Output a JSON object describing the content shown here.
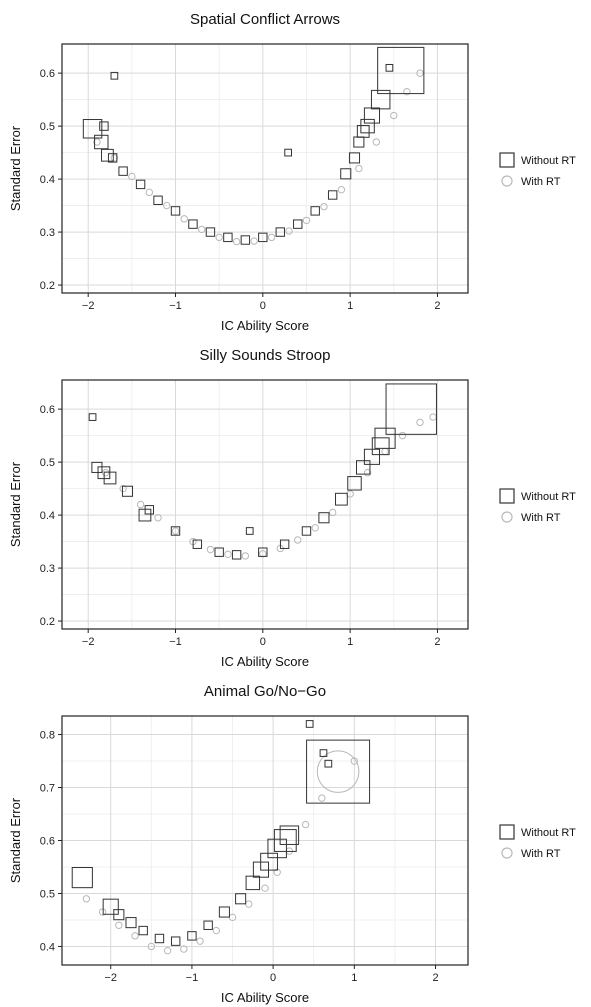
{
  "chart_data": [
    {
      "type": "scatter",
      "title": "Spatial Conflict Arrows",
      "xlabel": "IC Ability Score",
      "ylabel": "Standard Error",
      "xlim": [
        -2.3,
        2.35
      ],
      "ylim": [
        0.185,
        0.655
      ],
      "xticks": [
        -2,
        -1,
        0,
        1,
        2
      ],
      "yticks": [
        0.2,
        0.3,
        0.4,
        0.5,
        0.6
      ],
      "grid": true,
      "legend": "right",
      "series": [
        {
          "name": "Without RT",
          "marker": "square",
          "color": "#333333",
          "points": [
            [
              -1.95,
              0.495
            ],
            [
              -1.85,
              0.47
            ],
            [
              -1.82,
              0.5
            ],
            [
              -1.78,
              0.445
            ],
            [
              -1.72,
              0.44
            ],
            [
              -1.7,
              0.595
            ],
            [
              -1.6,
              0.415
            ],
            [
              -1.4,
              0.39
            ],
            [
              -1.2,
              0.36
            ],
            [
              -1.0,
              0.34
            ],
            [
              -0.8,
              0.315
            ],
            [
              -0.6,
              0.3
            ],
            [
              -0.4,
              0.29
            ],
            [
              -0.2,
              0.285
            ],
            [
              0.0,
              0.29
            ],
            [
              0.2,
              0.3
            ],
            [
              0.29,
              0.45
            ],
            [
              0.4,
              0.315
            ],
            [
              0.6,
              0.34
            ],
            [
              0.8,
              0.37
            ],
            [
              0.95,
              0.41
            ],
            [
              1.05,
              0.44
            ],
            [
              1.1,
              0.47
            ],
            [
              1.15,
              0.49
            ],
            [
              1.2,
              0.5
            ],
            [
              1.25,
              0.52
            ],
            [
              1.35,
              0.55
            ],
            [
              1.45,
              0.61
            ],
            [
              1.58,
              0.605
            ]
          ],
          "sizes": [
            2.2,
            1.6,
            1.0,
            1.4,
            1.0,
            0.8,
            1.0,
            1.0,
            1.0,
            1.0,
            1.0,
            1.0,
            1.0,
            1.0,
            1.0,
            1.0,
            0.8,
            1.0,
            1.0,
            1.0,
            1.2,
            1.2,
            1.2,
            1.4,
            1.6,
            1.8,
            2.2,
            0.8,
            5.5
          ]
        },
        {
          "name": "With RT",
          "marker": "circle",
          "color": "#b8b8b8",
          "points": [
            [
              -1.9,
              0.47
            ],
            [
              -1.7,
              0.44
            ],
            [
              -1.5,
              0.405
            ],
            [
              -1.3,
              0.375
            ],
            [
              -1.1,
              0.35
            ],
            [
              -0.9,
              0.325
            ],
            [
              -0.7,
              0.305
            ],
            [
              -0.5,
              0.29
            ],
            [
              -0.3,
              0.282
            ],
            [
              -0.1,
              0.283
            ],
            [
              0.1,
              0.29
            ],
            [
              0.3,
              0.302
            ],
            [
              0.5,
              0.322
            ],
            [
              0.7,
              0.348
            ],
            [
              0.9,
              0.38
            ],
            [
              1.1,
              0.42
            ],
            [
              1.3,
              0.47
            ],
            [
              1.5,
              0.52
            ],
            [
              1.65,
              0.565
            ],
            [
              1.8,
              0.6
            ]
          ]
        }
      ]
    },
    {
      "type": "scatter",
      "title": "Silly Sounds Stroop",
      "xlabel": "IC Ability Score",
      "ylabel": "Standard Error",
      "xlim": [
        -2.3,
        2.35
      ],
      "ylim": [
        0.185,
        0.655
      ],
      "xticks": [
        -2,
        -1,
        0,
        1,
        2
      ],
      "yticks": [
        0.2,
        0.3,
        0.4,
        0.5,
        0.6
      ],
      "grid": true,
      "legend": "right",
      "series": [
        {
          "name": "Without RT",
          "marker": "square",
          "color": "#333333",
          "points": [
            [
              -1.95,
              0.585
            ],
            [
              -1.9,
              0.49
            ],
            [
              -1.82,
              0.48
            ],
            [
              -1.75,
              0.47
            ],
            [
              -1.55,
              0.445
            ],
            [
              -1.3,
              0.41
            ],
            [
              -1.35,
              0.4
            ],
            [
              -1.0,
              0.37
            ],
            [
              -0.75,
              0.345
            ],
            [
              -0.5,
              0.33
            ],
            [
              -0.3,
              0.325
            ],
            [
              -0.15,
              0.37
            ],
            [
              0.0,
              0.33
            ],
            [
              0.25,
              0.345
            ],
            [
              0.5,
              0.37
            ],
            [
              0.7,
              0.395
            ],
            [
              0.9,
              0.43
            ],
            [
              1.05,
              0.46
            ],
            [
              1.15,
              0.49
            ],
            [
              1.25,
              0.51
            ],
            [
              1.35,
              0.53
            ],
            [
              1.4,
              0.545
            ],
            [
              1.7,
              0.6
            ]
          ],
          "sizes": [
            0.8,
            1.2,
            1.4,
            1.4,
            1.2,
            1.0,
            1.4,
            1.0,
            1.0,
            1.0,
            1.0,
            0.8,
            1.0,
            1.0,
            1.0,
            1.2,
            1.4,
            1.6,
            1.6,
            1.8,
            2.0,
            2.4,
            6.0
          ]
        },
        {
          "name": "With RT",
          "marker": "circle",
          "color": "#b8b8b8",
          "points": [
            [
              -1.8,
              0.48
            ],
            [
              -1.6,
              0.45
            ],
            [
              -1.4,
              0.42
            ],
            [
              -1.2,
              0.395
            ],
            [
              -1.0,
              0.37
            ],
            [
              -0.8,
              0.35
            ],
            [
              -0.6,
              0.335
            ],
            [
              -0.4,
              0.326
            ],
            [
              -0.2,
              0.323
            ],
            [
              0.0,
              0.327
            ],
            [
              0.2,
              0.337
            ],
            [
              0.4,
              0.353
            ],
            [
              0.6,
              0.376
            ],
            [
              0.8,
              0.405
            ],
            [
              1.0,
              0.44
            ],
            [
              1.2,
              0.48
            ],
            [
              1.4,
              0.52
            ],
            [
              1.6,
              0.55
            ],
            [
              1.8,
              0.575
            ],
            [
              1.95,
              0.585
            ]
          ]
        }
      ]
    },
    {
      "type": "scatter",
      "title": "Animal Go/No−Go",
      "xlabel": "IC Ability Score",
      "ylabel": "Standard Error",
      "xlim": [
        -2.6,
        2.4
      ],
      "ylim": [
        0.365,
        0.835
      ],
      "xticks": [
        -2,
        -1,
        0,
        1,
        2
      ],
      "yticks": [
        0.4,
        0.5,
        0.6,
        0.7,
        0.8
      ],
      "grid": true,
      "legend": "right",
      "series": [
        {
          "name": "Without RT",
          "marker": "square",
          "color": "#333333",
          "points": [
            [
              -2.35,
              0.53
            ],
            [
              -2.0,
              0.475
            ],
            [
              -1.9,
              0.46
            ],
            [
              -1.75,
              0.445
            ],
            [
              -1.6,
              0.43
            ],
            [
              -1.4,
              0.415
            ],
            [
              -1.2,
              0.41
            ],
            [
              -1.0,
              0.42
            ],
            [
              -0.8,
              0.44
            ],
            [
              -0.6,
              0.465
            ],
            [
              -0.4,
              0.49
            ],
            [
              -0.25,
              0.52
            ],
            [
              -0.15,
              0.545
            ],
            [
              -0.05,
              0.56
            ],
            [
              0.05,
              0.585
            ],
            [
              0.15,
              0.6
            ],
            [
              0.2,
              0.61
            ],
            [
              0.45,
              0.82
            ],
            [
              0.62,
              0.765
            ],
            [
              0.68,
              0.745
            ],
            [
              0.8,
              0.73
            ]
          ],
          "sizes": [
            2.4,
            1.8,
            1.2,
            1.2,
            1.0,
            1.0,
            1.0,
            1.0,
            1.0,
            1.2,
            1.2,
            1.6,
            1.8,
            2.0,
            2.2,
            2.6,
            2.2,
            0.8,
            0.8,
            0.8,
            7.5
          ]
        },
        {
          "name": "With RT",
          "marker": "circle",
          "color": "#b8b8b8",
          "points": [
            [
              -2.3,
              0.49
            ],
            [
              -2.1,
              0.465
            ],
            [
              -1.9,
              0.44
            ],
            [
              -1.7,
              0.42
            ],
            [
              -1.5,
              0.4
            ],
            [
              -1.3,
              0.392
            ],
            [
              -1.1,
              0.395
            ],
            [
              -0.9,
              0.41
            ],
            [
              -0.7,
              0.43
            ],
            [
              -0.5,
              0.455
            ],
            [
              -0.3,
              0.48
            ],
            [
              -0.1,
              0.51
            ],
            [
              0.05,
              0.54
            ],
            [
              0.2,
              0.58
            ],
            [
              0.4,
              0.63
            ],
            [
              0.6,
              0.68
            ],
            [
              0.8,
              0.73
            ],
            [
              1.0,
              0.75
            ]
          ],
          "sizes": [
            1,
            1,
            1,
            1,
            1,
            1,
            1,
            1,
            1,
            1,
            1,
            1,
            1,
            1,
            1,
            1,
            6.5,
            1
          ]
        }
      ]
    }
  ]
}
